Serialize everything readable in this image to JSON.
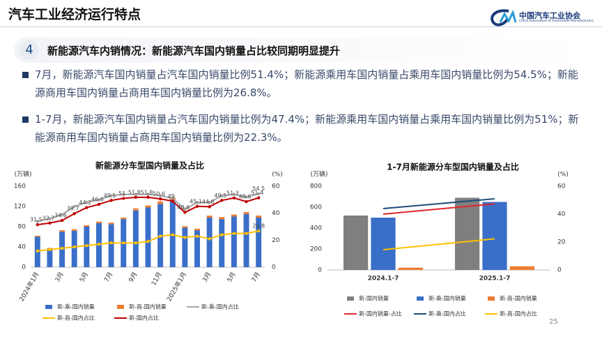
{
  "header": {
    "title": "汽车工业经济运行特点",
    "logo_name": "中国汽车工业协会",
    "logo_english": "China Association of Automobile Manufacturers"
  },
  "section": {
    "number": "4",
    "heading": "新能源汽车内销情况：新能源汽车国内销量占比较同期明显提升"
  },
  "bullets": [
    "7月，新能源汽车国内销量占汽车国内销量比例51.4%；新能源乘用车国内销量占乘用车国内销量比例为54.5%；新能源商用车国内销量占商用车国内销量比例为26.8%。",
    "1-7月，新能源汽车国内销量占汽车国内销量比例为47.4%；新能源乘用车国内销量占乘用车国内销量比例为51%；新能源商用车国内销量占商用车国内销量比例为22.3%。"
  ],
  "page_number": "25",
  "chart_data": [
    {
      "type": "combo",
      "title": "新能源分车型国内销量及占比",
      "y_label": "(万辆)",
      "y2_label": "(%)",
      "stacked": true,
      "grid": false,
      "categories": [
        "2024年1月",
        null,
        "3月",
        null,
        "5月",
        null,
        "7月",
        null,
        "9月",
        null,
        "11月",
        null,
        "2025年1月",
        null,
        "3月",
        null,
        "5月",
        null,
        "7月"
      ],
      "ylim": [
        0,
        160
      ],
      "yticks": [
        0,
        40,
        80,
        120,
        160
      ],
      "y2lim": [
        0,
        60
      ],
      "y2ticks": [
        0,
        20,
        40,
        60
      ],
      "series": [
        {
          "name": "新-乘-国内销量",
          "kind": "bar",
          "color": "#3a6fc9",
          "values": [
            60,
            36,
            70,
            72,
            80,
            87,
            85,
            95,
            112,
            118,
            125,
            130,
            78,
            73,
            98,
            95,
            100,
            105,
            98
          ]
        },
        {
          "name": "新-商-国内销量",
          "kind": "bar",
          "color": "#ed7d31",
          "values": [
            2,
            2,
            3,
            3,
            3,
            3,
            3,
            3,
            4,
            4,
            5,
            8,
            3,
            3,
            4,
            4,
            4,
            4,
            4
          ]
        },
        {
          "name": "新-乘-国内占比",
          "kind": "line",
          "axis": "y2",
          "color": "#a5a5a5",
          "marker": true,
          "labels": "last",
          "values": [
            34,
            36,
            39,
            45,
            48,
            50,
            53,
            54,
            54,
            54,
            53,
            51,
            43,
            48,
            48,
            53,
            54,
            52,
            54.5
          ]
        },
        {
          "name": "新-商-国内占比",
          "kind": "line",
          "axis": "y2",
          "color": "#ffc000",
          "marker": true,
          "labels": "last",
          "values": [
            12,
            13,
            14,
            15,
            16,
            17,
            18,
            18,
            18,
            19,
            23,
            24,
            22,
            23,
            21,
            24,
            25,
            25,
            26.8
          ]
        },
        {
          "name": "新-国内占比",
          "kind": "line",
          "axis": "y2",
          "color": "#c00000",
          "marker": true,
          "labels": "all",
          "values": [
            31.5,
            32.7,
            34.6,
            39.7,
            44.2,
            46.6,
            49.5,
            51,
            51.8,
            51.8,
            50.6,
            49,
            40.6,
            45.1,
            44.8,
            49.5,
            51.3,
            48.6,
            51.4
          ]
        }
      ]
    },
    {
      "type": "combo",
      "title": "1-7月新能源分车型国内销量及占比",
      "y_label": "(万辆)",
      "y2_label": "(%)",
      "stacked": false,
      "grid": false,
      "categories": [
        "2024.1-7",
        "2025.1-7"
      ],
      "ylim": [
        0,
        800
      ],
      "yticks": [
        0,
        200,
        400,
        600,
        800
      ],
      "y2lim": [
        0,
        60
      ],
      "y2ticks": [
        0,
        20,
        40,
        60
      ],
      "series": [
        {
          "name": "新-国内销量",
          "kind": "bar",
          "color": "#7f7f7f",
          "values": [
            520,
            690
          ]
        },
        {
          "name": "新-乘-国内销量",
          "kind": "bar",
          "color": "#3a6fc9",
          "values": [
            500,
            650
          ]
        },
        {
          "name": "新-商-国内销量",
          "kind": "bar",
          "color": "#ed7d31",
          "values": [
            22,
            35
          ]
        },
        {
          "name": "新-国内销量-占比",
          "kind": "line",
          "axis": "y2",
          "color": "#e0262b",
          "marker": false,
          "values": [
            40,
            47.4
          ]
        },
        {
          "name": "新-乘-国内占比",
          "kind": "line",
          "axis": "y2",
          "color": "#1f4e79",
          "marker": false,
          "values": [
            44,
            51
          ]
        },
        {
          "name": "新-商-国内占比",
          "kind": "line",
          "axis": "y2",
          "color": "#ffc000",
          "marker": false,
          "values": [
            14.5,
            22.3
          ]
        }
      ]
    }
  ]
}
